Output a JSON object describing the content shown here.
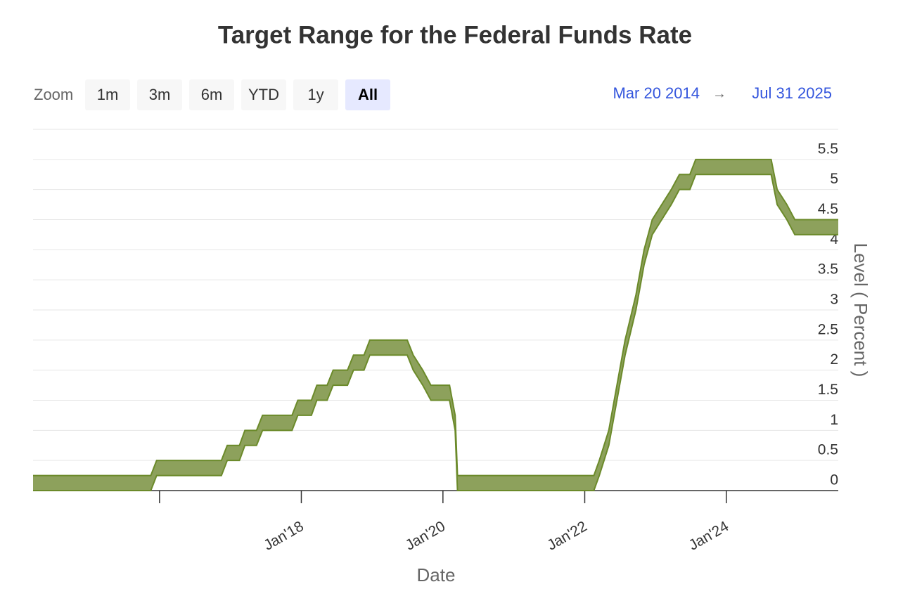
{
  "chart_data": {
    "type": "arearange",
    "title": "Target Range for the Federal Funds Rate",
    "x": [
      "2014-03-20",
      "2015-11-17",
      "2015-12-17",
      "2016-11-15",
      "2016-12-15",
      "2017-02-16",
      "2017-03-16",
      "2017-05-15",
      "2017-06-15",
      "2017-11-14",
      "2017-12-14",
      "2018-02-22",
      "2018-03-22",
      "2018-05-14",
      "2018-06-14",
      "2018-08-27",
      "2018-09-27",
      "2018-11-20",
      "2018-12-20",
      "2019-07-01",
      "2019-08-01",
      "2019-09-19",
      "2019-10-31",
      "2020-02-04",
      "2020-03-04",
      "2020-03-16",
      "2022-02-17",
      "2022-03-17",
      "2022-05-05",
      "2022-06-16",
      "2022-07-28",
      "2022-09-22",
      "2022-11-03",
      "2022-12-15",
      "2023-02-02",
      "2023-03-23",
      "2023-05-04",
      "2023-06-27",
      "2023-07-27",
      "2024-08-19",
      "2024-09-19",
      "2024-11-08",
      "2024-12-19",
      "2025-07-31"
    ],
    "low": [
      0,
      0,
      0.25,
      0.25,
      0.5,
      0.5,
      0.75,
      0.75,
      1,
      1,
      1.25,
      1.25,
      1.5,
      1.5,
      1.75,
      1.75,
      2,
      2,
      2.25,
      2.25,
      2,
      1.75,
      1.5,
      1.5,
      1,
      0,
      0,
      0.25,
      0.75,
      1.5,
      2.25,
      3,
      3.75,
      4.25,
      4.5,
      4.75,
      5,
      5,
      5.25,
      5.25,
      4.75,
      4.5,
      4.25,
      4.25
    ],
    "high": [
      0.25,
      0.25,
      0.5,
      0.5,
      0.75,
      0.75,
      1,
      1,
      1.25,
      1.25,
      1.5,
      1.5,
      1.75,
      1.75,
      2,
      2,
      2.25,
      2.25,
      2.5,
      2.5,
      2.25,
      2,
      1.75,
      1.75,
      1.25,
      0.25,
      0.25,
      0.5,
      1,
      1.75,
      2.5,
      3.25,
      4,
      4.5,
      4.75,
      5,
      5.25,
      5.25,
      5.5,
      5.5,
      5,
      4.75,
      4.5,
      4.5
    ],
    "color": "#8da15c",
    "line_color": "#6b8a2a",
    "xlim": [
      "2014-03-20",
      "2025-07-31"
    ],
    "xticks": [
      {
        "value": "2016-01-01",
        "label": null
      },
      {
        "value": "2018-01-01",
        "label": "Jan'18"
      },
      {
        "value": "2020-01-01",
        "label": "Jan'20"
      },
      {
        "value": "2022-01-01",
        "label": "Jan'22"
      },
      {
        "value": "2024-01-01",
        "label": "Jan'24"
      }
    ],
    "ylim": [
      0,
      6
    ],
    "yticks": [
      0,
      0.5,
      1,
      1.5,
      2,
      2.5,
      3,
      3.5,
      4,
      4.5,
      5,
      5.5
    ],
    "x_label": "Date",
    "y_label": "Level ( Percent )",
    "grid": true
  },
  "range_selector": {
    "label": "Zoom",
    "buttons": [
      "1m",
      "3m",
      "6m",
      "YTD",
      "1y",
      "All"
    ],
    "selected": 5,
    "from": "Mar 20 2014",
    "arrow": "→",
    "to": "Jul 31 2025"
  }
}
